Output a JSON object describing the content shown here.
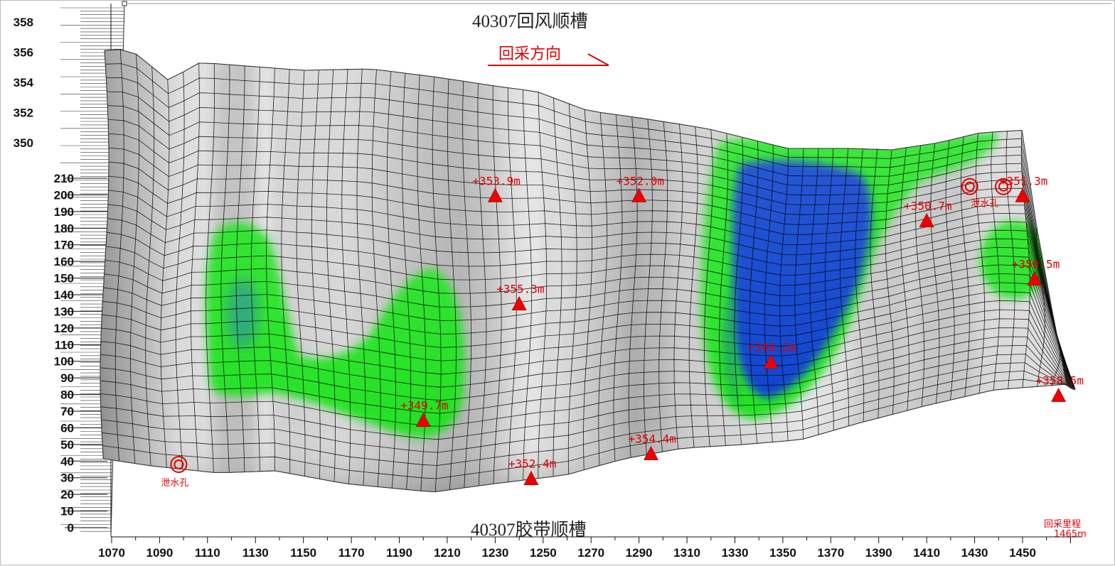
{
  "top_title": "40307回风顺槽",
  "bottom_title": "40307胶带顺槽",
  "direction_label": "回采方向",
  "mileage_label": "回采里程",
  "mileage_value": "1465m",
  "drain_hole_label": "泄水孔",
  "colors": {
    "marker": "#ee0000",
    "label": "#e00000",
    "low_green": "#1fe41f",
    "deep_blue": "#0a3ad8",
    "mesh": "#000000"
  },
  "chart_data": {
    "type": "surface",
    "x_ticks": [
      "1070",
      "1090",
      "1110",
      "1130",
      "1150",
      "1170",
      "1190",
      "1210",
      "1230",
      "1250",
      "1270",
      "1290",
      "1310",
      "1330",
      "1350",
      "1370",
      "1390",
      "1410",
      "1430",
      "1450"
    ],
    "y_ticks": [
      "0",
      "10",
      "20",
      "30",
      "40",
      "50",
      "60",
      "70",
      "80",
      "90",
      "100",
      "110",
      "120",
      "130",
      "140",
      "150",
      "160",
      "170",
      "180",
      "190",
      "200",
      "210"
    ],
    "z_ticks": [
      "350",
      "352",
      "354",
      "356",
      "358"
    ],
    "elevation_points": [
      {
        "label": "+353.9m",
        "x": 1230,
        "y": 200
      },
      {
        "label": "+352.0m",
        "x": 1290,
        "y": 200
      },
      {
        "label": "+351.3m",
        "x": 1450,
        "y": 200
      },
      {
        "label": "+350.7m",
        "x": 1410,
        "y": 185
      },
      {
        "label": "+355.3m",
        "x": 1240,
        "y": 135
      },
      {
        "label": "+350.5m",
        "x": 1455,
        "y": 150
      },
      {
        "label": "+348.2m",
        "x": 1345,
        "y": 100
      },
      {
        "label": "+358.5m",
        "x": 1465,
        "y": 80
      },
      {
        "label": "+349.7m",
        "x": 1200,
        "y": 65
      },
      {
        "label": "+354.4m",
        "x": 1295,
        "y": 45
      },
      {
        "label": "+352.4m",
        "x": 1245,
        "y": 30
      }
    ],
    "drain_holes": [
      {
        "x": 1098,
        "y": 38
      },
      {
        "x": 1428,
        "y": 205
      },
      {
        "x": 1442,
        "y": 205
      }
    ]
  }
}
